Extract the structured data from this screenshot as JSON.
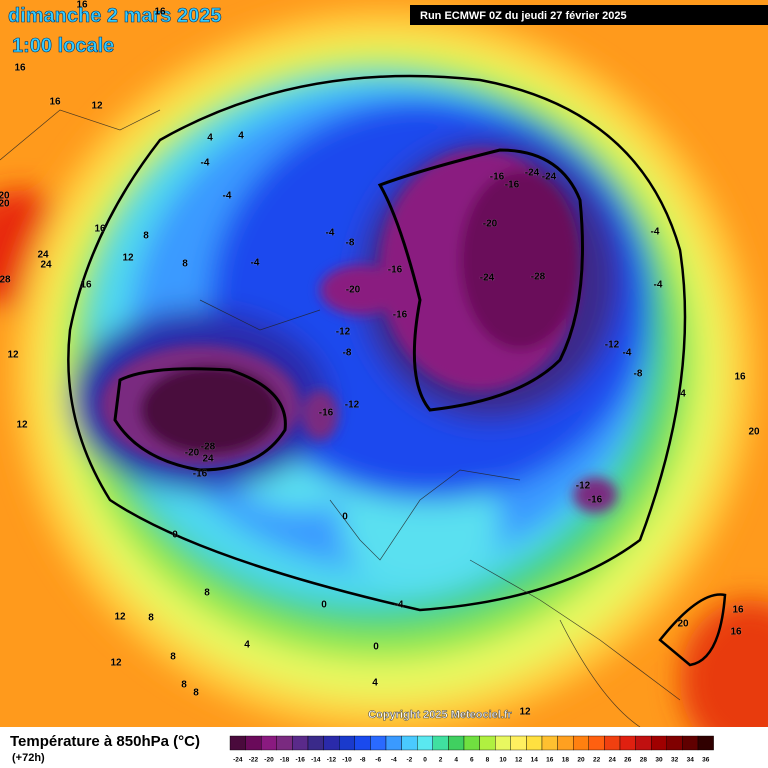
{
  "header": {
    "title": "dimanche 2 mars 2025",
    "subtitle": "1:00 locale",
    "run": "Run ECMWF 0Z du jeudi 27 février 2025"
  },
  "footer": {
    "title": "Température à 850hPa (°C)",
    "lead": "(+72h)",
    "copyright": "Copyright 2025 Meteociel.fr"
  },
  "legend": {
    "ticks": [
      -24,
      -22,
      -20,
      -18,
      -16,
      -14,
      -12,
      -10,
      -8,
      -6,
      -4,
      -2,
      0,
      2,
      4,
      6,
      8,
      10,
      12,
      14,
      16,
      18,
      20,
      22,
      24,
      26,
      28,
      30,
      32,
      34,
      36
    ],
    "colors": [
      "#4a0a3c",
      "#6a0a5a",
      "#8a1a80",
      "#7a2a80",
      "#5a2a8a",
      "#3a2a8a",
      "#2a2aaa",
      "#1a3acc",
      "#1a4aee",
      "#2a6aff",
      "#3a9aff",
      "#4acaff",
      "#5ae8f0",
      "#40e0a0",
      "#40d060",
      "#70e040",
      "#b0f040",
      "#e8f860",
      "#fff060",
      "#ffe040",
      "#ffc030",
      "#ffa020",
      "#ff8010",
      "#ff6010",
      "#f04010",
      "#e02010",
      "#c01010",
      "#a00000",
      "#800000",
      "#600000",
      "#300000"
    ]
  },
  "contour_labels": [
    16,
    16,
    12,
    16,
    16,
    4,
    4,
    -4,
    -4,
    -4,
    -4,
    -8,
    -16,
    -20,
    -16,
    -12,
    -8,
    -12,
    -16,
    -20,
    -28,
    24,
    -16,
    -16,
    -16,
    -24,
    -24,
    -20,
    -24,
    -28,
    -12,
    -4,
    -8,
    -12,
    -16,
    -4,
    -4,
    16,
    20,
    4,
    0,
    0,
    0,
    -4,
    0,
    4,
    8,
    8,
    12,
    12,
    8,
    8,
    8,
    4,
    12,
    20,
    16,
    16,
    16,
    8,
    12,
    8,
    16,
    24,
    24,
    28,
    12,
    12,
    20,
    20
  ]
}
